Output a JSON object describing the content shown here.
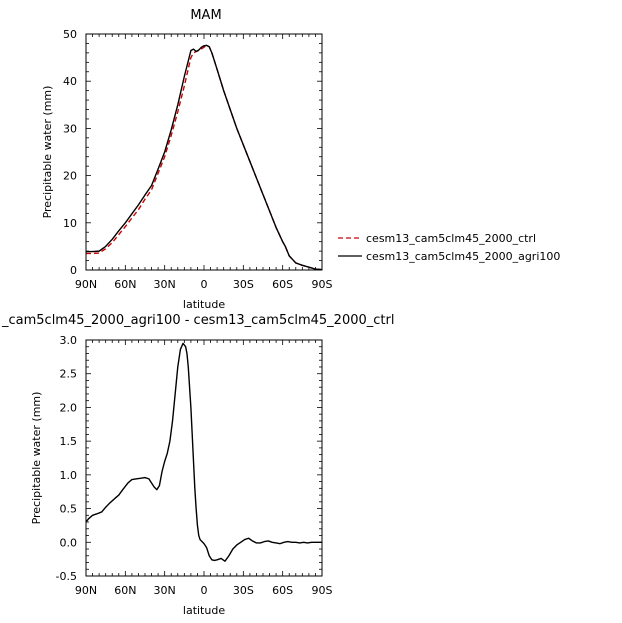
{
  "chart_data": [
    {
      "type": "line",
      "title": "MAM",
      "xlabel": "latitude",
      "ylabel": "Precipitable water (mm)",
      "xlim": [
        90,
        -90
      ],
      "ylim": [
        0,
        50
      ],
      "x_ticks": [
        90,
        60,
        30,
        0,
        -30,
        -60,
        -90
      ],
      "x_tick_labels": [
        "90N",
        "60N",
        "30N",
        "0",
        "30S",
        "60S",
        "90S"
      ],
      "y_ticks": [
        0,
        10,
        20,
        30,
        40,
        50
      ],
      "y_tick_labels": [
        "0",
        "10",
        "20",
        "30",
        "40",
        "50"
      ],
      "grid": false,
      "legend_position": "right",
      "series": [
        {
          "name": "cesm13_cam5clm45_2000_ctrl",
          "color": "#cc0000",
          "dash": "dashed",
          "x": [
            90,
            85,
            80,
            75,
            70,
            65,
            60,
            55,
            50,
            45,
            40,
            35,
            30,
            25,
            20,
            15,
            10,
            8,
            6,
            4,
            2,
            0,
            -2,
            -4,
            -6,
            -10,
            -15,
            -20,
            -25,
            -30,
            -35,
            -40,
            -45,
            -50,
            -55,
            -60,
            -62,
            -65,
            -70,
            -75,
            -80,
            -85,
            -90
          ],
          "y": [
            3.5,
            3.5,
            3.6,
            4.5,
            5.8,
            7.5,
            9.2,
            11.0,
            12.8,
            15.0,
            17.0,
            20.5,
            24.0,
            28.5,
            33.5,
            39.0,
            45.0,
            46.0,
            46.3,
            46.5,
            46.8,
            47.2,
            47.6,
            47.3,
            46.0,
            42.5,
            38.0,
            34.0,
            30.0,
            26.5,
            23.0,
            19.5,
            16.0,
            12.5,
            9.0,
            6.0,
            5.0,
            3.0,
            1.5,
            1.0,
            0.6,
            0.2,
            0.1
          ]
        },
        {
          "name": "cesm13_cam5clm45_2000_agri100",
          "color": "#000000",
          "dash": "solid",
          "x": [
            90,
            85,
            80,
            75,
            70,
            65,
            60,
            55,
            50,
            45,
            40,
            35,
            30,
            25,
            20,
            15,
            10,
            8,
            6,
            4,
            2,
            0,
            -2,
            -4,
            -6,
            -10,
            -15,
            -20,
            -25,
            -30,
            -35,
            -40,
            -45,
            -50,
            -55,
            -60,
            -62,
            -65,
            -70,
            -75,
            -80,
            -85,
            -90
          ],
          "y": [
            3.9,
            3.9,
            4.0,
            5.0,
            6.5,
            8.3,
            10.0,
            11.9,
            13.8,
            15.9,
            17.9,
            21.4,
            25.0,
            29.7,
            35.0,
            41.0,
            46.5,
            46.8,
            46.3,
            46.6,
            47.2,
            47.5,
            47.6,
            47.3,
            46.0,
            42.5,
            38.0,
            34.0,
            30.0,
            26.5,
            23.0,
            19.5,
            16.0,
            12.5,
            9.0,
            6.0,
            5.0,
            3.0,
            1.5,
            1.0,
            0.6,
            0.2,
            0.1
          ]
        }
      ]
    },
    {
      "type": "line",
      "title": "_cam5clm45_2000_agri100 - cesm13_cam5clm45_2000_ctrl",
      "xlabel": "latitude",
      "ylabel": "Precipitable water (mm)",
      "xlim": [
        90,
        -90
      ],
      "ylim": [
        -0.5,
        3.0
      ],
      "x_ticks": [
        90,
        60,
        30,
        0,
        -30,
        -60,
        -90
      ],
      "x_tick_labels": [
        "90N",
        "60N",
        "30N",
        "0",
        "30S",
        "60S",
        "90S"
      ],
      "y_ticks": [
        -0.5,
        0.0,
        0.5,
        1.0,
        1.5,
        2.0,
        2.5,
        3.0
      ],
      "y_tick_labels": [
        "-0.5",
        "0.0",
        "0.5",
        "1.0",
        "1.5",
        "2.0",
        "2.5",
        "3.0"
      ],
      "grid": false,
      "series": [
        {
          "color": "#000000",
          "dash": "solid",
          "x": [
            90,
            88,
            85,
            82,
            78,
            75,
            72,
            68,
            65,
            62,
            58,
            55,
            52,
            48,
            45,
            42,
            40,
            38,
            36,
            34,
            32,
            30,
            28,
            26,
            24,
            22,
            20,
            18,
            16,
            14,
            13,
            12,
            11,
            10,
            9,
            8,
            7,
            6,
            5,
            4,
            3,
            2,
            1,
            0,
            -2,
            -4,
            -6,
            -8,
            -10,
            -13,
            -16,
            -19,
            -22,
            -25,
            -28,
            -31,
            -34,
            -37,
            -40,
            -43,
            -46,
            -49,
            -52,
            -55,
            -58,
            -61,
            -64,
            -67,
            -70,
            -73,
            -76,
            -79,
            -82,
            -85,
            -88,
            -90
          ],
          "y": [
            0.3,
            0.35,
            0.4,
            0.42,
            0.45,
            0.52,
            0.58,
            0.65,
            0.7,
            0.78,
            0.88,
            0.93,
            0.94,
            0.95,
            0.96,
            0.94,
            0.88,
            0.82,
            0.78,
            0.84,
            1.05,
            1.2,
            1.32,
            1.5,
            1.8,
            2.2,
            2.6,
            2.86,
            2.95,
            2.9,
            2.8,
            2.6,
            2.3,
            2.0,
            1.6,
            1.2,
            0.8,
            0.5,
            0.25,
            0.1,
            0.04,
            0.02,
            0.0,
            -0.02,
            -0.08,
            -0.2,
            -0.26,
            -0.27,
            -0.26,
            -0.24,
            -0.28,
            -0.2,
            -0.1,
            -0.04,
            0.0,
            0.04,
            0.06,
            0.02,
            -0.01,
            -0.01,
            0.01,
            0.02,
            0.0,
            -0.01,
            -0.02,
            0.0,
            0.01,
            0.0,
            0.0,
            -0.01,
            0.0,
            -0.01,
            0.0,
            0.0,
            0.0,
            0.0
          ]
        }
      ]
    }
  ]
}
